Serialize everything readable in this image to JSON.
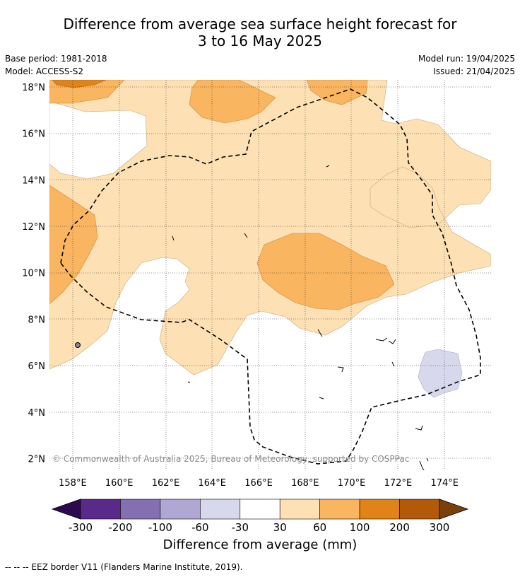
{
  "title": {
    "line1": "Difference from average sea surface height forecast for",
    "line2": "3 to 16 May 2025"
  },
  "meta_left": {
    "base_period": "Base period: 1981-2018",
    "model": "Model: ACCESS-S2"
  },
  "meta_right": {
    "model_run": "Model run: 19/04/2025",
    "issued": "Issued: 21/04/2025"
  },
  "map": {
    "lat_labels": [
      "18°N",
      "16°N",
      "14°N",
      "12°N",
      "10°N",
      "8°N",
      "6°N",
      "4°N",
      "2°N"
    ],
    "lat_values": [
      18,
      16,
      14,
      12,
      10,
      8,
      6,
      4,
      2
    ],
    "lon_labels": [
      "158°E",
      "160°E",
      "162°E",
      "164°E",
      "166°E",
      "168°E",
      "170°E",
      "172°E",
      "174°E"
    ],
    "lon_values": [
      158,
      160,
      162,
      164,
      166,
      168,
      170,
      172,
      174
    ],
    "lon_range": [
      157,
      176
    ],
    "lat_range": [
      1.5,
      18.3
    ],
    "copyright": "© Commonwealth of Australia 2025, Bureau of Meteorology, supported by COSPPac"
  },
  "colorbar": {
    "ticks": [
      "-300",
      "-200",
      "-100",
      "-60",
      "-30",
      "30",
      "60",
      "100",
      "200",
      "300"
    ],
    "colors": [
      "#2d0a4e",
      "#5a2a8a",
      "#8470b0",
      "#b0a8d2",
      "#d8d8ec",
      "#ffffff",
      "#fde0b4",
      "#f9b560",
      "#e18418",
      "#b25a0a",
      "#7a3f0a"
    ],
    "label": "Difference from average (mm)"
  },
  "footer": "-- -- -- EEZ border V11 (Flanders Marine Institute, 2019)."
}
